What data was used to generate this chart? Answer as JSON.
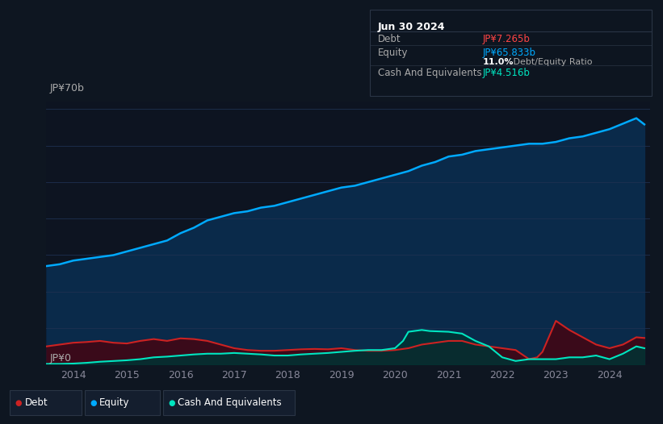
{
  "background_color": "#0e1621",
  "plot_bg_color": "#0d1421",
  "title_box": {
    "date": "Jun 30 2024",
    "debt_label": "Debt",
    "debt_value": "JP¥7.265b",
    "debt_color": "#ff4444",
    "equity_label": "Equity",
    "equity_value": "JP¥65.833b",
    "equity_color": "#00aaff",
    "ratio_bold": "11.0%",
    "ratio_text": " Debt/Equity Ratio",
    "cash_label": "Cash And Equivalents",
    "cash_value": "JP¥4.516b",
    "cash_color": "#00e5c0",
    "box_bg": "#0d1520",
    "box_border": "#2a3545"
  },
  "ylabel_top": "JP¥70b",
  "ylabel_bottom": "JP¥0",
  "xlim": [
    2013.5,
    2024.75
  ],
  "ylim": [
    0,
    72
  ],
  "xticks": [
    2014,
    2015,
    2016,
    2017,
    2018,
    2019,
    2020,
    2021,
    2022,
    2023,
    2024
  ],
  "equity_color": "#00aaff",
  "equity_fill": "#0a2a4a",
  "debt_color": "#cc2222",
  "debt_fill": "#3a0a1a",
  "cash_color": "#00e5c0",
  "cash_fill": "#003333",
  "legend_items": [
    {
      "label": "Debt",
      "color": "#cc2222"
    },
    {
      "label": "Equity",
      "color": "#00aaff"
    },
    {
      "label": "Cash And Equivalents",
      "color": "#00e5c0"
    }
  ],
  "equity_x": [
    2013.5,
    2013.75,
    2014.0,
    2014.25,
    2014.5,
    2014.75,
    2015.0,
    2015.25,
    2015.5,
    2015.75,
    2016.0,
    2016.25,
    2016.5,
    2016.75,
    2017.0,
    2017.25,
    2017.5,
    2017.75,
    2018.0,
    2018.25,
    2018.5,
    2018.75,
    2019.0,
    2019.25,
    2019.5,
    2019.75,
    2020.0,
    2020.25,
    2020.5,
    2020.75,
    2021.0,
    2021.25,
    2021.5,
    2021.75,
    2022.0,
    2022.25,
    2022.5,
    2022.75,
    2023.0,
    2023.25,
    2023.5,
    2023.75,
    2024.0,
    2024.25,
    2024.5,
    2024.65
  ],
  "equity_y": [
    27.0,
    27.5,
    28.5,
    29.0,
    29.5,
    30.0,
    31.0,
    32.0,
    33.0,
    34.0,
    36.0,
    37.5,
    39.5,
    40.5,
    41.5,
    42.0,
    43.0,
    43.5,
    44.5,
    45.5,
    46.5,
    47.5,
    48.5,
    49.0,
    50.0,
    51.0,
    52.0,
    53.0,
    54.5,
    55.5,
    57.0,
    57.5,
    58.5,
    59.0,
    59.5,
    60.0,
    60.5,
    60.5,
    61.0,
    62.0,
    62.5,
    63.5,
    64.5,
    66.0,
    67.5,
    65.8
  ],
  "debt_x": [
    2013.5,
    2013.75,
    2014.0,
    2014.25,
    2014.5,
    2014.75,
    2015.0,
    2015.25,
    2015.5,
    2015.75,
    2016.0,
    2016.25,
    2016.5,
    2016.75,
    2017.0,
    2017.25,
    2017.5,
    2017.75,
    2018.0,
    2018.25,
    2018.5,
    2018.75,
    2019.0,
    2019.25,
    2019.5,
    2019.75,
    2020.0,
    2020.25,
    2020.5,
    2020.75,
    2021.0,
    2021.25,
    2021.5,
    2021.75,
    2022.0,
    2022.25,
    2022.5,
    2022.65,
    2022.75,
    2023.0,
    2023.1,
    2023.25,
    2023.5,
    2023.75,
    2024.0,
    2024.25,
    2024.5,
    2024.65
  ],
  "debt_y": [
    5.0,
    5.5,
    6.0,
    6.2,
    6.5,
    6.0,
    5.8,
    6.5,
    7.0,
    6.5,
    7.2,
    7.0,
    6.5,
    5.5,
    4.5,
    4.0,
    3.8,
    3.8,
    4.0,
    4.2,
    4.3,
    4.2,
    4.5,
    4.0,
    3.8,
    3.8,
    4.0,
    4.5,
    5.5,
    6.0,
    6.5,
    6.5,
    5.5,
    5.0,
    4.5,
    4.0,
    1.5,
    2.0,
    3.5,
    12.0,
    11.0,
    9.5,
    7.5,
    5.5,
    4.5,
    5.5,
    7.5,
    7.3
  ],
  "cash_x": [
    2013.5,
    2013.75,
    2014.0,
    2014.25,
    2014.5,
    2014.75,
    2015.0,
    2015.25,
    2015.5,
    2015.75,
    2016.0,
    2016.25,
    2016.5,
    2016.75,
    2017.0,
    2017.25,
    2017.5,
    2017.75,
    2018.0,
    2018.25,
    2018.5,
    2018.75,
    2019.0,
    2019.25,
    2019.5,
    2019.75,
    2020.0,
    2020.15,
    2020.25,
    2020.5,
    2020.65,
    2021.0,
    2021.25,
    2021.5,
    2021.75,
    2022.0,
    2022.25,
    2022.5,
    2022.75,
    2023.0,
    2023.25,
    2023.5,
    2023.75,
    2024.0,
    2024.25,
    2024.5,
    2024.65
  ],
  "cash_y": [
    0.2,
    0.2,
    0.3,
    0.5,
    0.8,
    1.0,
    1.2,
    1.5,
    2.0,
    2.2,
    2.5,
    2.8,
    3.0,
    3.0,
    3.2,
    3.0,
    2.8,
    2.5,
    2.5,
    2.8,
    3.0,
    3.2,
    3.5,
    3.8,
    4.0,
    4.0,
    4.5,
    6.5,
    9.0,
    9.5,
    9.2,
    9.0,
    8.5,
    6.5,
    5.0,
    2.0,
    1.0,
    1.5,
    1.5,
    1.5,
    2.0,
    2.0,
    2.5,
    1.5,
    3.0,
    5.0,
    4.5
  ]
}
